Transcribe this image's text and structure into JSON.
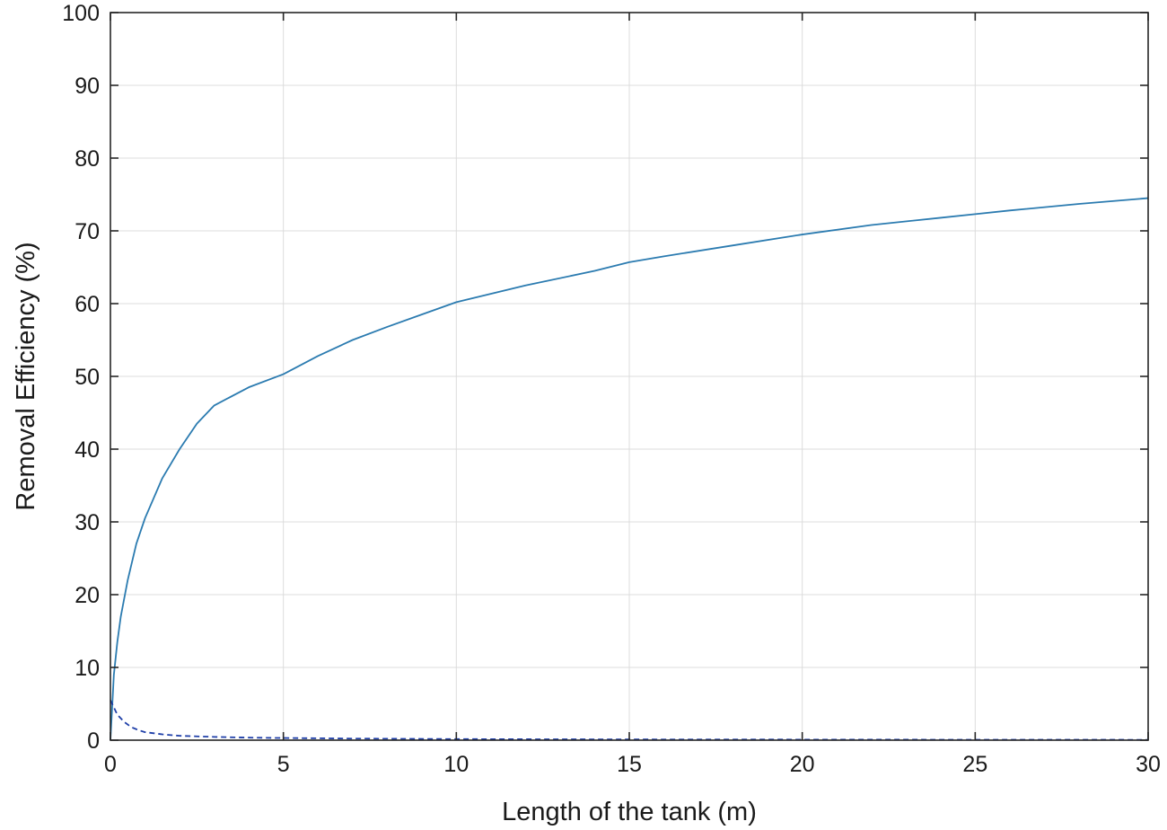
{
  "chart_data": {
    "type": "line",
    "title": "",
    "xlabel": "Length of the tank (m)",
    "ylabel": "Removal Efficiency (%)",
    "xlim": [
      0,
      30
    ],
    "ylim": [
      0,
      100
    ],
    "xticks": [
      0,
      5,
      10,
      15,
      20,
      25,
      30
    ],
    "yticks": [
      0,
      10,
      20,
      30,
      40,
      50,
      60,
      70,
      80,
      90,
      100
    ],
    "xtick_labels": [
      "0",
      "5",
      "10",
      "15",
      "20",
      "25",
      "30"
    ],
    "ytick_labels": [
      "0",
      "10",
      "20",
      "30",
      "40",
      "50",
      "60",
      "70",
      "80",
      "90",
      "100"
    ],
    "grid": true,
    "legend": "none",
    "series": [
      {
        "style": "solid",
        "color": "#2b7bb0",
        "x": [
          0,
          0.1,
          0.2,
          0.3,
          0.5,
          0.75,
          1,
          1.5,
          2,
          2.5,
          3,
          4,
          5,
          6,
          7,
          8,
          9,
          10,
          12,
          14,
          15,
          16,
          18,
          20,
          22,
          24,
          25,
          26,
          28,
          30
        ],
        "y": [
          0,
          9,
          13.5,
          17,
          22,
          27,
          30.5,
          36,
          40,
          43.5,
          46,
          48.5,
          50.3,
          52.8,
          55,
          56.8,
          58.5,
          60.2,
          62.5,
          64.5,
          65.7,
          66.5,
          68,
          69.5,
          70.8,
          71.8,
          72.3,
          72.8,
          73.7,
          74.5
        ]
      },
      {
        "style": "dashed",
        "color": "#1f3fa8",
        "x": [
          0,
          0.2,
          0.4,
          0.6,
          0.8,
          1,
          1.5,
          2,
          3,
          4,
          5,
          7,
          10,
          15,
          20,
          25,
          30
        ],
        "y": [
          5.5,
          3.5,
          2.5,
          1.8,
          1.4,
          1.1,
          0.8,
          0.6,
          0.45,
          0.35,
          0.3,
          0.22,
          0.15,
          0.1,
          0.08,
          0.06,
          0.05
        ]
      }
    ]
  }
}
